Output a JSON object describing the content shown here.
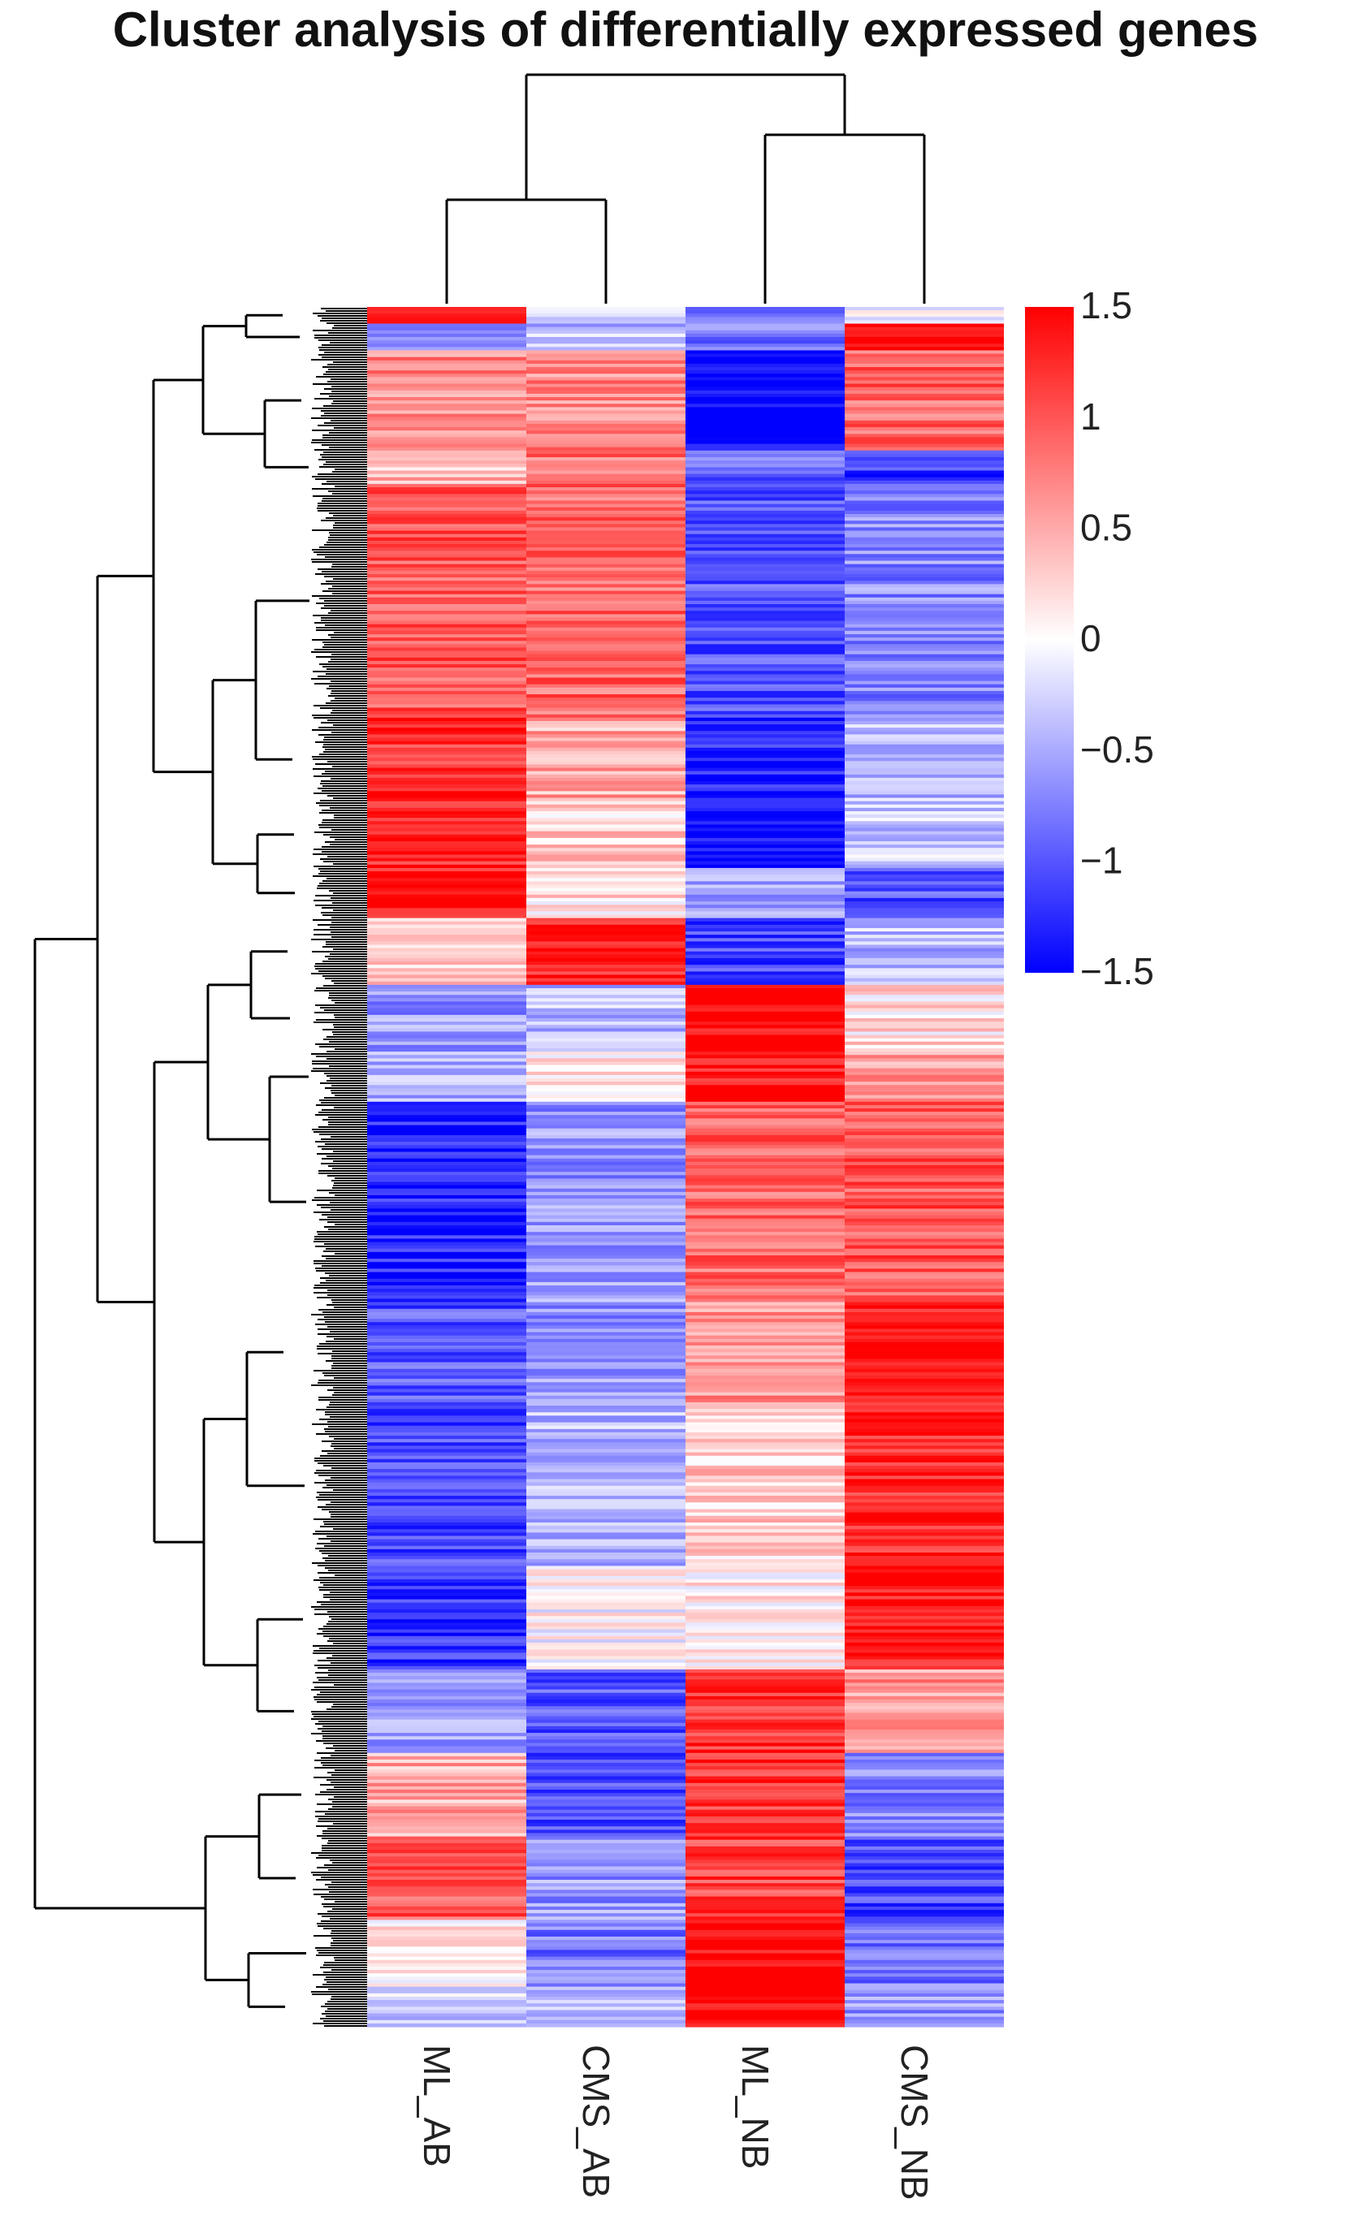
{
  "chart_data": {
    "type": "heatmap",
    "title": "Cluster analysis of differentially expressed genes",
    "columns": [
      "ML_AB",
      "CMS_AB",
      "ML_NB",
      "CMS_NB"
    ],
    "color_scale": {
      "min": -1.5,
      "max": 1.5,
      "ticks": [
        "1.5",
        "1",
        "0.5",
        "0",
        "−0.5",
        "−1",
        "−1.5"
      ],
      "tick_values": [
        1.5,
        1,
        0.5,
        0,
        -0.5,
        -1,
        -1.5
      ],
      "low_color": "#0000ff",
      "mid_color": "#ffffff",
      "high_color": "#ff0000"
    },
    "row_dendrogram": "left",
    "column_dendrogram": "top",
    "column_clusters": [
      [
        "ML_AB",
        "CMS_AB"
      ],
      [
        "ML_NB",
        "CMS_NB"
      ]
    ],
    "row_blocks": [
      {
        "rows": 5,
        "values": [
          1.3,
          -0.1,
          -0.7,
          -0.1
        ]
      },
      {
        "rows": 8,
        "values": [
          -0.6,
          -0.4,
          -0.8,
          1.5
        ]
      },
      {
        "rows": 30,
        "values": [
          0.7,
          0.7,
          -1.5,
          0.9
        ]
      },
      {
        "rows": 10,
        "values": [
          0.4,
          0.8,
          -0.9,
          -1.2
        ]
      },
      {
        "rows": 70,
        "values": [
          1.0,
          0.9,
          -1.0,
          -0.7
        ]
      },
      {
        "rows": 25,
        "values": [
          1.2,
          0.5,
          -1.3,
          -0.4
        ]
      },
      {
        "rows": 20,
        "values": [
          1.3,
          0.3,
          -1.4,
          -0.3
        ]
      },
      {
        "rows": 15,
        "values": [
          1.3,
          0.2,
          -0.5,
          -1.0
        ]
      },
      {
        "rows": 20,
        "values": [
          0.3,
          1.3,
          -1.1,
          -0.4
        ]
      },
      {
        "rows": 20,
        "values": [
          -0.6,
          -0.4,
          1.5,
          0.2
        ]
      },
      {
        "rows": 15,
        "values": [
          -0.5,
          0.2,
          1.4,
          0.6
        ]
      },
      {
        "rows": 60,
        "values": [
          -1.3,
          -0.6,
          0.9,
          1.0
        ]
      },
      {
        "rows": 30,
        "values": [
          -1.0,
          -0.6,
          0.6,
          1.4
        ]
      },
      {
        "rows": 50,
        "values": [
          -1.1,
          -0.4,
          0.3,
          1.3
        ]
      },
      {
        "rows": 30,
        "values": [
          -1.2,
          0.0,
          0.1,
          1.4
        ]
      },
      {
        "rows": 25,
        "values": [
          -0.5,
          -1.0,
          1.2,
          0.6
        ]
      },
      {
        "rows": 25,
        "values": [
          0.5,
          -1.0,
          1.2,
          -0.7
        ]
      },
      {
        "rows": 25,
        "values": [
          1.0,
          -0.6,
          1.1,
          -1.1
        ]
      },
      {
        "rows": 20,
        "values": [
          0.2,
          -0.8,
          1.5,
          -0.8
        ]
      },
      {
        "rows": 12,
        "values": [
          -0.3,
          -0.5,
          1.5,
          -0.6
        ]
      }
    ]
  },
  "colors": {
    "dendrogram_line": "#000000",
    "tick_text": "#222222"
  }
}
